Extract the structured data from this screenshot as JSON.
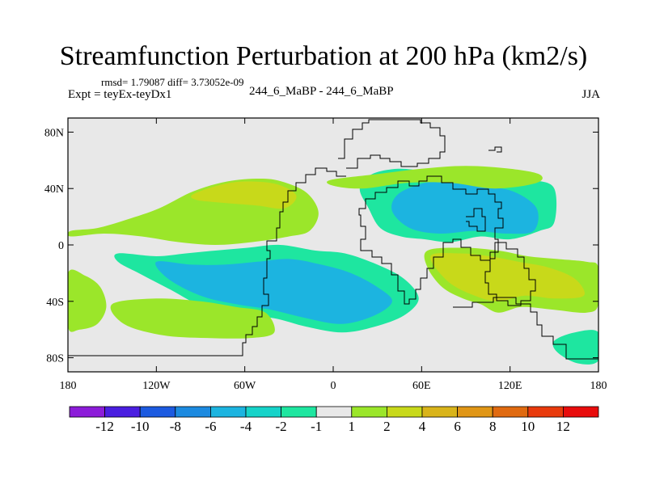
{
  "chart_data": {
    "type": "heatmap",
    "title": "Streamfunction Perturbation at 200 hPa (km2/s)",
    "left_info": "rmsd= 1.79087 diff= 3.73052e-09",
    "left_string": "Expt = teyEx-teyDx1",
    "center_string": "244_6_MaBP - 244_6_MaBP",
    "right_string": "JJA",
    "x_ticks": [
      {
        "value": -180,
        "label": "180"
      },
      {
        "value": -120,
        "label": "120W"
      },
      {
        "value": -60,
        "label": "60W"
      },
      {
        "value": 0,
        "label": "0"
      },
      {
        "value": 60,
        "label": "60E"
      },
      {
        "value": 120,
        "label": "120E"
      },
      {
        "value": 180,
        "label": "180"
      }
    ],
    "y_ticks": [
      {
        "value": 80,
        "label": "80N"
      },
      {
        "value": 40,
        "label": "40N"
      },
      {
        "value": 0,
        "label": "0"
      },
      {
        "value": -40,
        "label": "40S"
      },
      {
        "value": -80,
        "label": "80S"
      }
    ],
    "xlim": [
      -180,
      180
    ],
    "ylim": [
      -90,
      90
    ],
    "colorbar": {
      "colors": [
        "#8c1cd9",
        "#4a1ee0",
        "#1c5ae0",
        "#1c8ae0",
        "#1cb4e0",
        "#16d3c9",
        "#1ee6a0",
        "#e8e8e8",
        "#9be62a",
        "#c8d91a",
        "#d9b41a",
        "#e09616",
        "#e06a10",
        "#e83a0c",
        "#e80c0c"
      ],
      "labels": [
        "-12",
        "-10",
        "-8",
        "-6",
        "-4",
        "-2",
        "-1",
        "1",
        "2",
        "4",
        "6",
        "8",
        "10",
        "12"
      ]
    },
    "regions": [
      {
        "level": "2",
        "color": "#9be62a",
        "lon": [
          -178,
          -160,
          -140,
          -118,
          -95,
          -72,
          -50,
          -35,
          -18,
          -10,
          -16,
          -30,
          -55,
          -80,
          -105,
          -130,
          -155,
          -178
        ],
        "lat": [
          10,
          12,
          18,
          26,
          38,
          45,
          47,
          45,
          37,
          23,
          10,
          6,
          2,
          0,
          2,
          6,
          8,
          6
        ]
      },
      {
        "level": "4",
        "color": "#c8d91a",
        "lon": [
          -95,
          -75,
          -58,
          -38,
          -25,
          -33,
          -52,
          -76,
          -93
        ],
        "lat": [
          36,
          43,
          45,
          43,
          35,
          26,
          28,
          30,
          32
        ]
      },
      {
        "level": "-2",
        "color": "#1ee6a0",
        "lon": [
          -146,
          -120,
          -100,
          -80,
          -58,
          -36,
          -12,
          8,
          30,
          48,
          58,
          48,
          28,
          6,
          -18,
          -40,
          -62,
          -88,
          -110,
          -132,
          -146
        ],
        "lat": [
          -6,
          -8,
          -6,
          -4,
          -2,
          0,
          -4,
          -6,
          -14,
          -24,
          -38,
          -50,
          -58,
          -62,
          -58,
          -52,
          -50,
          -44,
          -32,
          -20,
          -12
        ]
      },
      {
        "level": "-4",
        "color": "#1cb4e0",
        "lon": [
          -120,
          -96,
          -74,
          -52,
          -30,
          -8,
          12,
          30,
          40,
          28,
          6,
          -18,
          -42,
          -66,
          -90,
          -112
        ],
        "lat": [
          -12,
          -14,
          -14,
          -12,
          -10,
          -14,
          -20,
          -30,
          -40,
          -50,
          -56,
          -52,
          -46,
          -42,
          -36,
          -24
        ]
      },
      {
        "level": "-2",
        "color": "#1ee6a0",
        "lon": [
          26,
          44,
          62,
          78,
          98,
          118,
          136,
          150,
          150,
          140,
          120,
          100,
          80,
          62,
          46,
          32,
          24,
          18
        ],
        "lat": [
          50,
          54,
          52,
          48,
          46,
          48,
          46,
          40,
          16,
          10,
          4,
          6,
          2,
          4,
          6,
          12,
          26,
          40
        ]
      },
      {
        "level": "-4",
        "color": "#1cb4e0",
        "lon": [
          44,
          62,
          80,
          100,
          122,
          138,
          136,
          118,
          96,
          72,
          52,
          40
        ],
        "lat": [
          36,
          44,
          46,
          42,
          38,
          26,
          10,
          8,
          10,
          8,
          12,
          24
        ]
      },
      {
        "level": "2",
        "color": "#9be62a",
        "lon": [
          64,
          88,
          112,
          132,
          152,
          172,
          180,
          180,
          172,
          150,
          128,
          112,
          100,
          88,
          74,
          64
        ],
        "lat": [
          -4,
          -2,
          -4,
          -8,
          -10,
          -12,
          -16,
          -42,
          -48,
          -46,
          -44,
          -48,
          -42,
          -38,
          -30,
          -16
        ]
      },
      {
        "level": "4",
        "color": "#c8d91a",
        "lon": [
          66,
          86,
          106,
          126,
          146,
          164,
          170,
          150,
          130,
          112,
          96,
          78
        ],
        "lat": [
          -8,
          -6,
          -8,
          -12,
          -16,
          -24,
          -36,
          -38,
          -36,
          -40,
          -36,
          -26
        ]
      },
      {
        "level": "2",
        "color": "#9be62a",
        "lon": [
          -180,
          -168,
          -158,
          -154,
          -160,
          -172,
          -180
        ],
        "lat": [
          -20,
          -22,
          -30,
          -44,
          -56,
          -60,
          -58
        ]
      },
      {
        "level": "2",
        "color": "#9be62a",
        "lon": [
          -150,
          -120,
          -90,
          -66,
          -46,
          -40,
          -56,
          -86,
          -116,
          -142
        ],
        "lat": [
          -42,
          -38,
          -40,
          -44,
          -48,
          -62,
          -66,
          -66,
          -64,
          -56
        ]
      },
      {
        "level": "2",
        "color": "#9be62a",
        "lon": [
          -2,
          28,
          60,
          90,
          120,
          140,
          138,
          110,
          80,
          50,
          20,
          0
        ],
        "lat": [
          46,
          50,
          54,
          56,
          54,
          50,
          44,
          40,
          44,
          44,
          40,
          42
        ]
      },
      {
        "level": "-2",
        "color": "#1ee6a0",
        "lon": [
          150,
          164,
          180,
          180,
          166,
          152
        ],
        "lat": [
          -68,
          -62,
          -62,
          -82,
          -84,
          -76
        ]
      }
    ]
  }
}
